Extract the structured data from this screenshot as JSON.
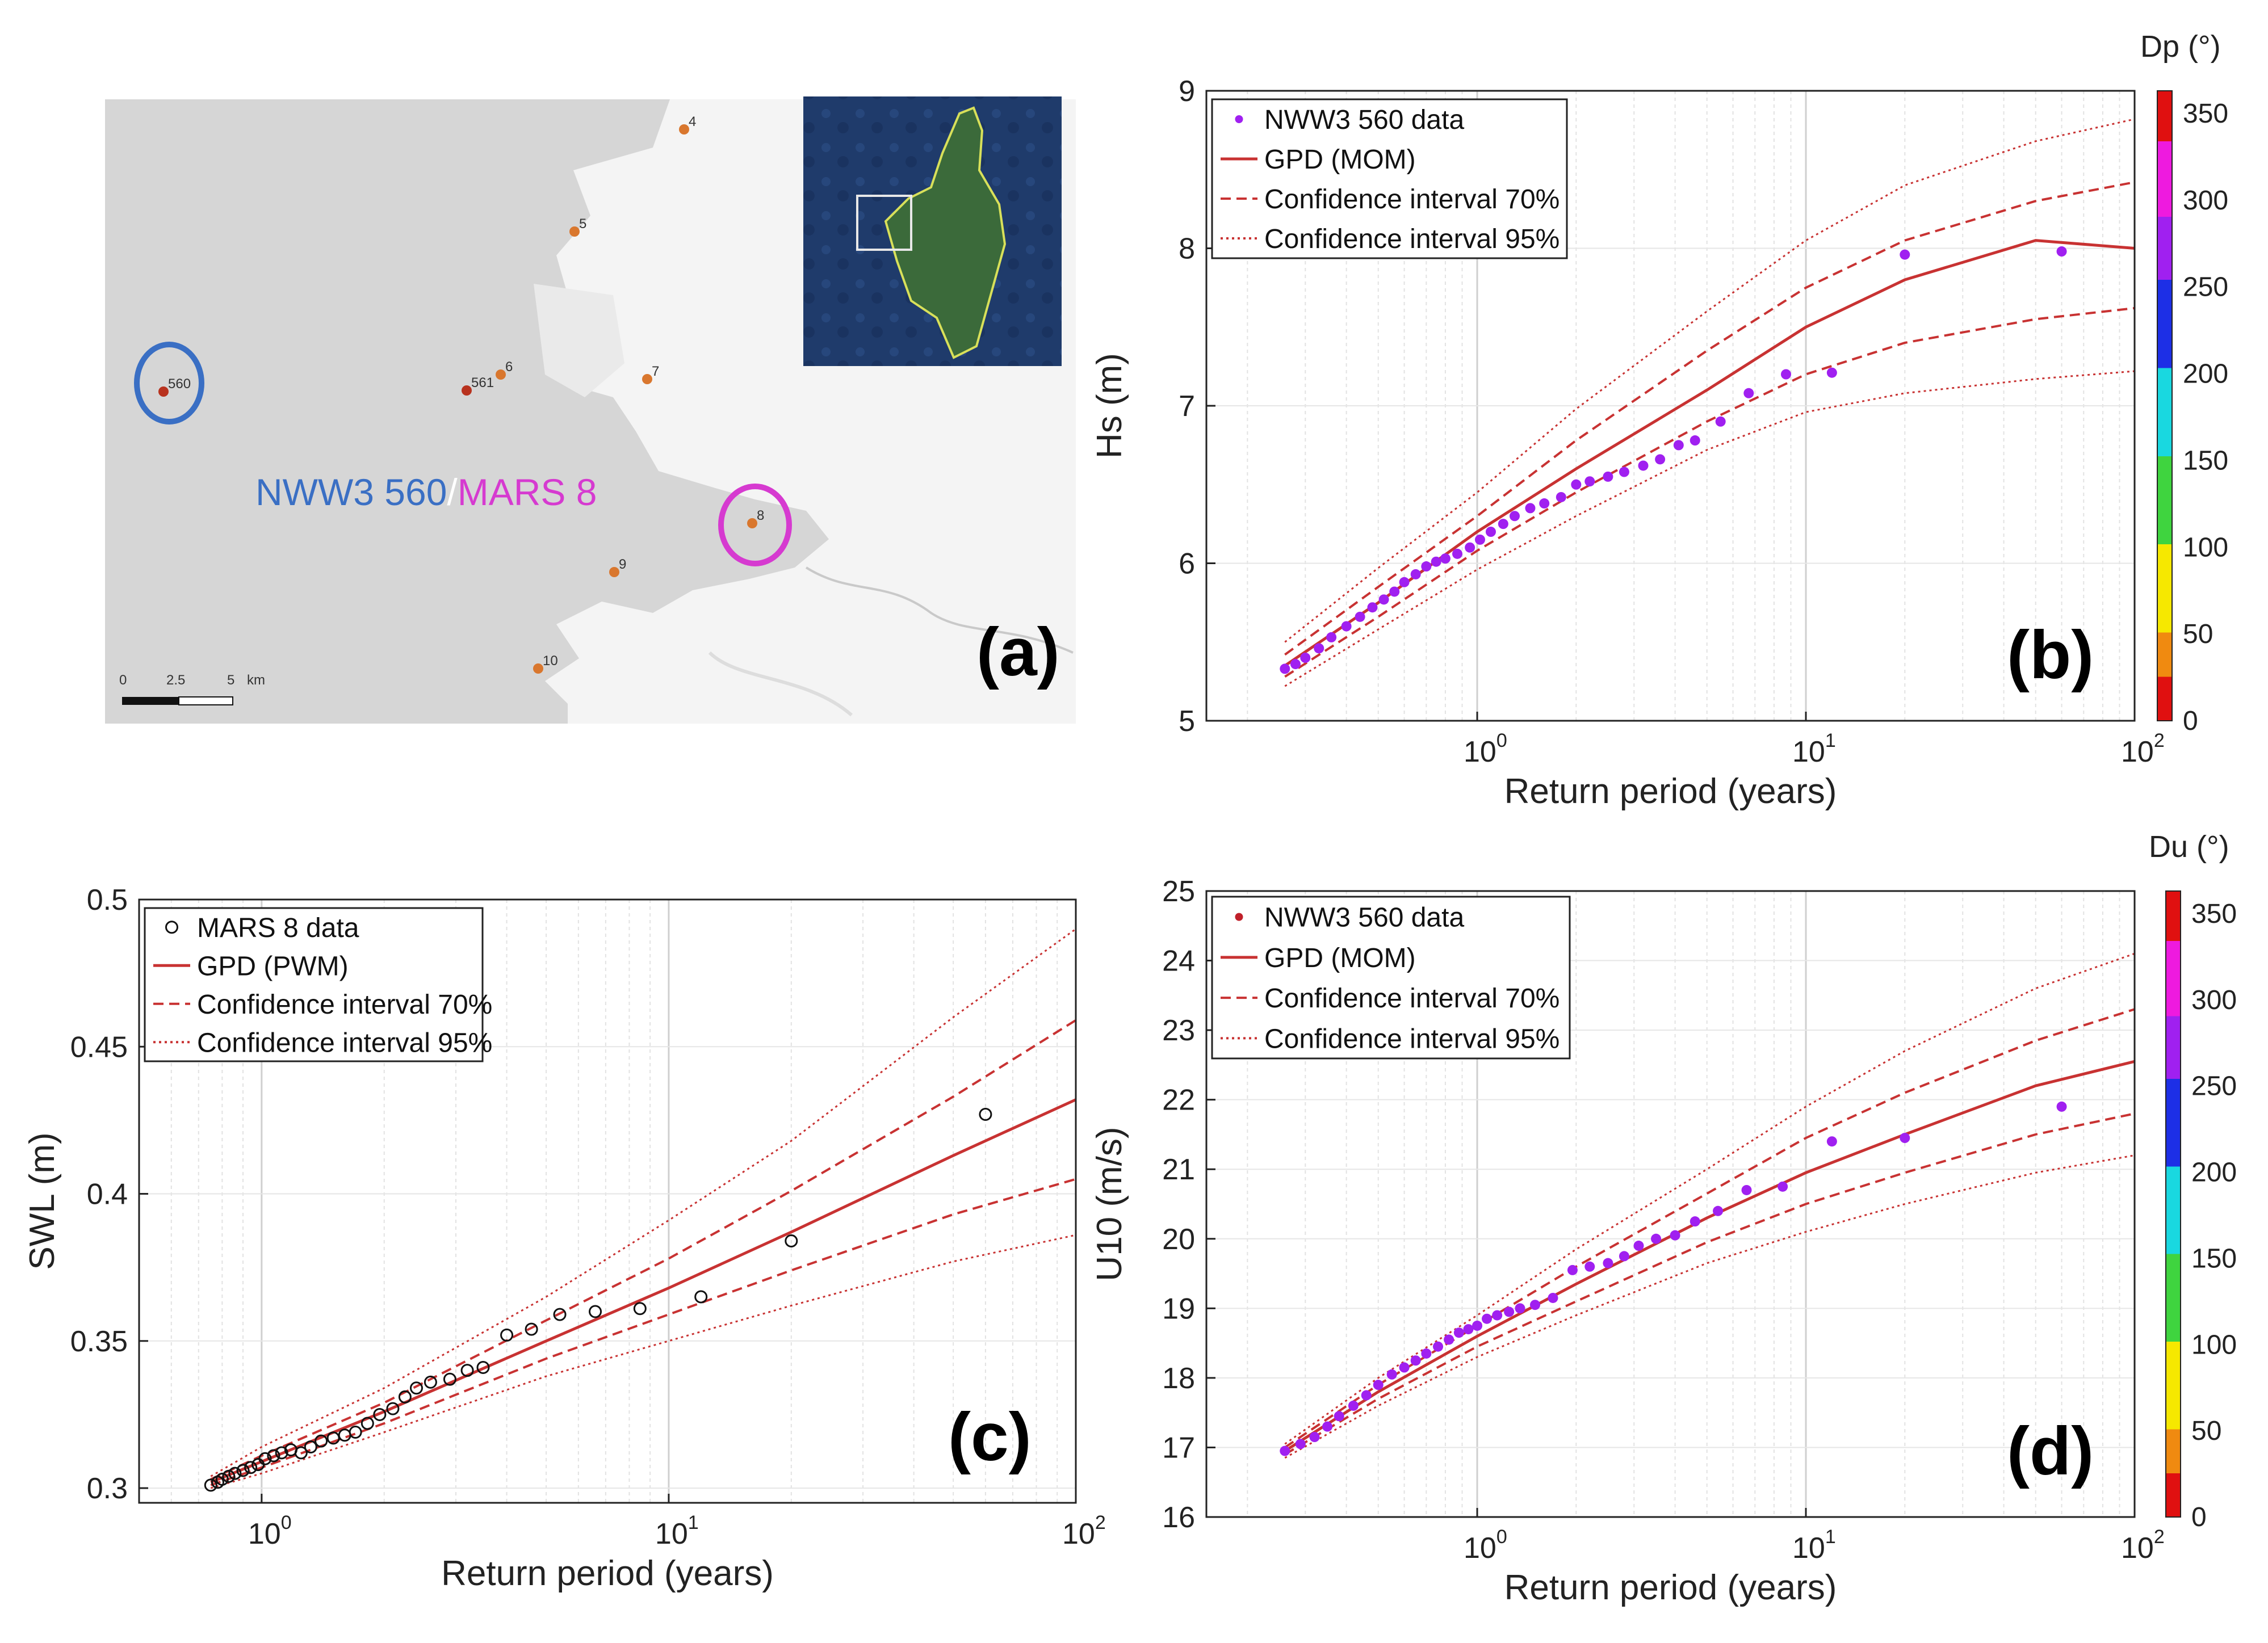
{
  "colors": {
    "curve": "#c83232",
    "purple": "#a020f0",
    "map_land": "#f4f4f4",
    "map_sea": "#d6d6d6",
    "nww3_circle": "#3a6fc4",
    "mars_circle": "#d63ad0"
  },
  "map": {
    "tag": "(a)",
    "title_nww3": "NWW3 560",
    "title_sep": "/",
    "title_mars": "MARS 8",
    "scale_labels": [
      "0",
      "2.5",
      "5",
      "km"
    ],
    "points": [
      {
        "id": "4"
      },
      {
        "id": "5"
      },
      {
        "id": "6"
      },
      {
        "id": "7"
      },
      {
        "id": "560"
      },
      {
        "id": "561"
      },
      {
        "id": "8"
      },
      {
        "id": "9"
      },
      {
        "id": "10"
      }
    ]
  },
  "chart_data": [
    {
      "id": "b",
      "type": "scatter",
      "tag": "(b)",
      "xlabel": "Return period (years)",
      "ylabel": "Hs (m)",
      "xscale": "log",
      "xlim": [
        0.15,
        100
      ],
      "ylim": [
        5,
        9
      ],
      "xticks": [
        1,
        10,
        100
      ],
      "yticks": [
        5,
        6,
        7,
        8,
        9
      ],
      "ytick_labels": [
        "5",
        "6",
        "7",
        "8",
        "9"
      ],
      "legend": [
        "NWW3 560 data",
        "GPD (MOM)",
        "Confidence interval 70%",
        "Confidence interval 95%"
      ],
      "curves": {
        "x": [
          0.26,
          0.5,
          1,
          2,
          5,
          10,
          20,
          50,
          100
        ],
        "gpd": [
          5.35,
          5.75,
          6.2,
          6.6,
          7.1,
          7.5,
          7.8,
          8.05,
          8.0
        ],
        "ci70_upper": [
          5.42,
          5.85,
          6.3,
          6.78,
          7.35,
          7.75,
          8.05,
          8.3,
          8.42
        ],
        "ci70_lower": [
          5.28,
          5.66,
          6.08,
          6.45,
          6.9,
          7.2,
          7.4,
          7.55,
          7.62
        ],
        "ci95_upper": [
          5.5,
          5.97,
          6.45,
          6.98,
          7.6,
          8.05,
          8.4,
          8.68,
          8.82
        ],
        "ci95_lower": [
          5.22,
          5.58,
          5.96,
          6.3,
          6.72,
          6.96,
          7.08,
          7.17,
          7.22
        ]
      },
      "points": {
        "x": [
          0.26,
          0.28,
          0.3,
          0.33,
          0.36,
          0.4,
          0.44,
          0.48,
          0.52,
          0.56,
          0.6,
          0.65,
          0.7,
          0.75,
          0.8,
          0.87,
          0.95,
          1.02,
          1.1,
          1.2,
          1.3,
          1.45,
          1.6,
          1.8,
          2.0,
          2.2,
          2.5,
          2.8,
          3.2,
          3.6,
          4.1,
          4.6,
          5.5,
          6.7,
          8.7,
          12,
          20,
          60
        ],
        "y": [
          5.33,
          5.36,
          5.4,
          5.46,
          5.53,
          5.6,
          5.66,
          5.72,
          5.77,
          5.82,
          5.88,
          5.93,
          5.98,
          6.01,
          6.03,
          6.06,
          6.1,
          6.15,
          6.2,
          6.25,
          6.3,
          6.35,
          6.38,
          6.42,
          6.5,
          6.52,
          6.55,
          6.58,
          6.62,
          6.66,
          6.75,
          6.78,
          6.9,
          7.08,
          7.2,
          7.21,
          7.96,
          7.98
        ],
        "color": "#a020f0"
      },
      "colorbar": {
        "title": "Dp (°)",
        "ticks": [
          "0",
          "50",
          "100",
          "150",
          "200",
          "250",
          "300",
          "350"
        ]
      }
    },
    {
      "id": "c",
      "type": "scatter",
      "tag": "(c)",
      "xlabel": "Return period (years)",
      "ylabel": "SWL (m)",
      "xscale": "log",
      "xlim": [
        0.5,
        100
      ],
      "ylim": [
        0.295,
        0.5
      ],
      "xticks": [
        1,
        10,
        100
      ],
      "yticks": [
        0.3,
        0.35,
        0.4,
        0.45,
        0.5
      ],
      "ytick_labels": [
        "0.3",
        "0.35",
        "0.4",
        "0.45",
        "0.5"
      ],
      "legend": [
        "MARS 8 data",
        "GPD (PWM)",
        "Confidence interval 70%",
        "Confidence interval 95%"
      ],
      "curves": {
        "x": [
          0.75,
          1,
          2,
          5,
          10,
          20,
          50,
          100
        ],
        "gpd": [
          0.302,
          0.309,
          0.326,
          0.35,
          0.368,
          0.387,
          0.413,
          0.432
        ],
        "ci70_upper": [
          0.303,
          0.311,
          0.329,
          0.357,
          0.378,
          0.401,
          0.433,
          0.459
        ],
        "ci70_lower": [
          0.301,
          0.307,
          0.322,
          0.344,
          0.359,
          0.374,
          0.393,
          0.405
        ],
        "ci95_upper": [
          0.304,
          0.314,
          0.334,
          0.365,
          0.391,
          0.418,
          0.46,
          0.49
        ],
        "ci95_lower": [
          0.3,
          0.305,
          0.319,
          0.338,
          0.35,
          0.362,
          0.377,
          0.386
        ]
      },
      "points": {
        "x": [
          0.75,
          0.78,
          0.8,
          0.83,
          0.86,
          0.9,
          0.94,
          0.98,
          1.02,
          1.07,
          1.12,
          1.18,
          1.25,
          1.32,
          1.4,
          1.5,
          1.6,
          1.7,
          1.82,
          1.95,
          2.1,
          2.25,
          2.4,
          2.6,
          2.9,
          3.2,
          3.5,
          4.0,
          4.6,
          5.4,
          6.6,
          8.5,
          12,
          20,
          60
        ],
        "y": [
          0.301,
          0.302,
          0.303,
          0.304,
          0.305,
          0.306,
          0.307,
          0.308,
          0.31,
          0.311,
          0.312,
          0.313,
          0.312,
          0.314,
          0.316,
          0.317,
          0.318,
          0.319,
          0.322,
          0.325,
          0.327,
          0.331,
          0.334,
          0.336,
          0.337,
          0.34,
          0.341,
          0.352,
          0.354,
          0.359,
          0.36,
          0.361,
          0.365,
          0.384,
          0.427
        ]
      }
    },
    {
      "id": "d",
      "type": "scatter",
      "tag": "(d)",
      "xlabel": "Return period (years)",
      "ylabel": "U10 (m/s)",
      "xscale": "log",
      "xlim": [
        0.15,
        100
      ],
      "ylim": [
        16,
        25
      ],
      "xticks": [
        1,
        10,
        100
      ],
      "yticks": [
        16,
        17,
        18,
        19,
        20,
        21,
        22,
        23,
        24,
        25
      ],
      "ytick_labels": [
        "16",
        "17",
        "18",
        "19",
        "20",
        "21",
        "22",
        "23",
        "24",
        "25"
      ],
      "legend": [
        "NWW3 560 data",
        "GPD (MOM)",
        "Confidence interval 70%",
        "Confidence interval 95%"
      ],
      "curves": {
        "x": [
          0.26,
          0.5,
          1,
          2,
          5,
          10,
          20,
          50,
          100
        ],
        "gpd": [
          16.95,
          17.8,
          18.6,
          19.35,
          20.3,
          20.95,
          21.5,
          22.2,
          22.55
        ],
        "ci70_upper": [
          17.0,
          17.9,
          18.75,
          19.6,
          20.65,
          21.45,
          22.1,
          22.85,
          23.3
        ],
        "ci70_lower": [
          16.9,
          17.7,
          18.45,
          19.1,
          19.95,
          20.5,
          20.95,
          21.5,
          21.8
        ],
        "ci95_upper": [
          17.05,
          18.0,
          18.9,
          19.85,
          21.0,
          21.9,
          22.7,
          23.6,
          24.1
        ],
        "ci95_lower": [
          16.85,
          17.6,
          18.3,
          18.9,
          19.65,
          20.1,
          20.5,
          20.95,
          21.2
        ]
      },
      "points": {
        "x": [
          0.26,
          0.29,
          0.32,
          0.35,
          0.38,
          0.42,
          0.46,
          0.5,
          0.55,
          0.6,
          0.65,
          0.7,
          0.76,
          0.82,
          0.88,
          0.94,
          1.0,
          1.07,
          1.15,
          1.25,
          1.35,
          1.5,
          1.7,
          1.95,
          2.2,
          2.5,
          2.8,
          3.1,
          3.5,
          4.0,
          4.6,
          5.4,
          6.6,
          8.5,
          12,
          20,
          60
        ],
        "y": [
          16.95,
          17.05,
          17.15,
          17.3,
          17.45,
          17.6,
          17.75,
          17.9,
          18.05,
          18.15,
          18.25,
          18.35,
          18.45,
          18.55,
          18.65,
          18.7,
          18.75,
          18.85,
          18.9,
          18.95,
          19.0,
          19.05,
          19.15,
          19.55,
          19.6,
          19.65,
          19.75,
          19.9,
          20.0,
          20.05,
          20.25,
          20.4,
          20.7,
          20.75,
          21.4,
          21.45,
          21.9
        ],
        "color": "#a020f0"
      },
      "colorbar": {
        "title": "Du (°)",
        "ticks": [
          "0",
          "50",
          "100",
          "150",
          "200",
          "250",
          "300",
          "350"
        ]
      }
    }
  ]
}
